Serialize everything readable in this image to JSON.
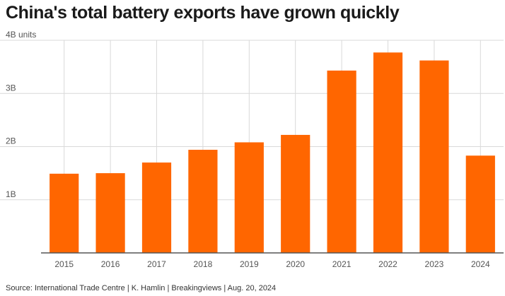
{
  "title": "China's total battery exports have grown quickly",
  "source": "Source: International Trade Centre | K. Hamlin | Breakingviews | Aug. 20, 2024",
  "colors": {
    "bar": "#ff6600",
    "grid": "#d9d9d9",
    "axis": "#555555",
    "tick_text": "#555555"
  },
  "chart_data": {
    "type": "bar",
    "title": "China's total battery exports have grown quickly",
    "xlabel": "",
    "ylabel": "",
    "categories": [
      "2015",
      "2016",
      "2017",
      "2018",
      "2019",
      "2020",
      "2021",
      "2022",
      "2023",
      "2024"
    ],
    "values": [
      1.49,
      1.5,
      1.7,
      1.94,
      2.08,
      2.22,
      3.43,
      3.77,
      3.62,
      1.83
    ],
    "ylim": [
      0,
      4
    ],
    "yticks": [
      1,
      2,
      3,
      4
    ],
    "ytick_labels": [
      "1B",
      "2B",
      "3B",
      "4B units"
    ],
    "grid": true
  }
}
